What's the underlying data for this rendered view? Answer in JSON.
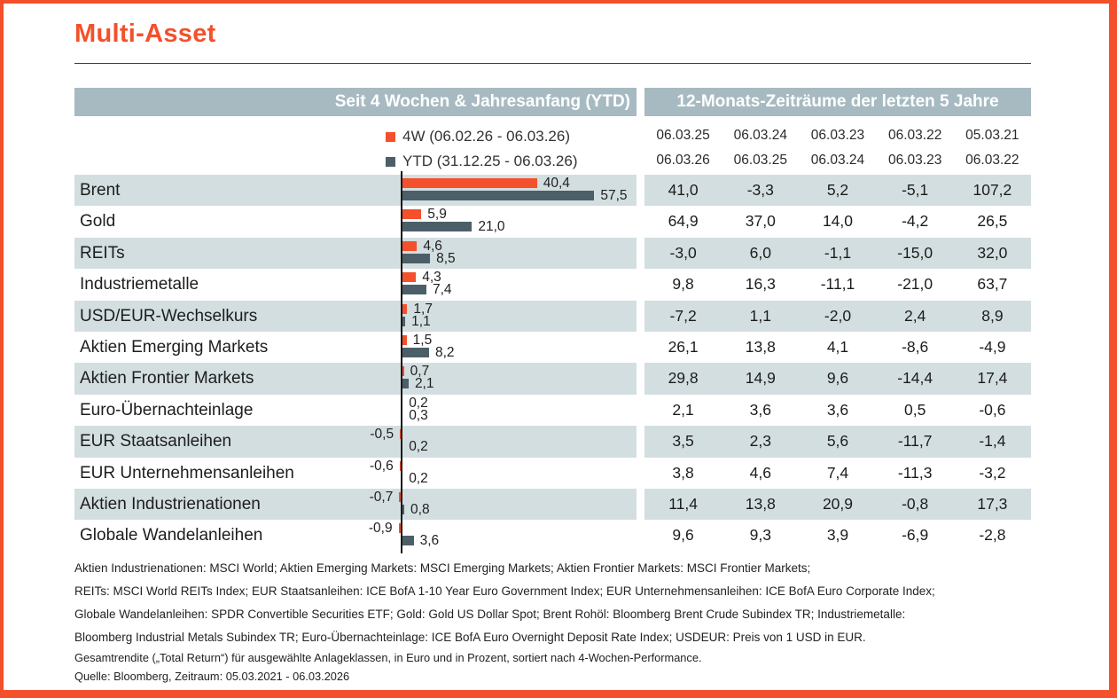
{
  "title": "Multi-Asset",
  "colors": {
    "accent_orange": "#F4502B",
    "bar_ytd_slate": "#4C5F68",
    "header_band_bg": "#A7BAC1",
    "row_stripe_bg": "#D3DEE1"
  },
  "header": {
    "left": "Seit 4 Wochen & Jahresanfang (YTD)",
    "right": "12-Monats-Zeiträume der letzten 5 Jahre"
  },
  "legend": {
    "w4": "4W (06.02.26 - 06.03.26)",
    "ytd": "YTD (31.12.25 - 06.03.26)"
  },
  "period_columns": [
    {
      "from": "06.03.25",
      "to": "06.03.26"
    },
    {
      "from": "06.03.24",
      "to": "06.03.25"
    },
    {
      "from": "06.03.23",
      "to": "06.03.24"
    },
    {
      "from": "06.03.22",
      "to": "06.03.23"
    },
    {
      "from": "05.03.21",
      "to": "06.03.22"
    }
  ],
  "chart_data": {
    "type": "bar",
    "orientation": "horizontal",
    "title": "Multi-Asset",
    "value_unit": "percent",
    "series": [
      "4W",
      "YTD"
    ],
    "x_range": [
      -5,
      70
    ],
    "sorted_by": "4-Wochen-Performance",
    "rows": [
      {
        "label": "Brent",
        "w4": 40.4,
        "ytd": 57.5,
        "w4_text": "40,4",
        "ytd_text": "57,5",
        "returns": [
          "41,0",
          "-3,3",
          "5,2",
          "-5,1",
          "107,2"
        ]
      },
      {
        "label": "Gold",
        "w4": 5.9,
        "ytd": 21.0,
        "w4_text": "5,9",
        "ytd_text": "21,0",
        "returns": [
          "64,9",
          "37,0",
          "14,0",
          "-4,2",
          "26,5"
        ]
      },
      {
        "label": "REITs",
        "w4": 4.6,
        "ytd": 8.5,
        "w4_text": "4,6",
        "ytd_text": "8,5",
        "returns": [
          "-3,0",
          "6,0",
          "-1,1",
          "-15,0",
          "32,0"
        ]
      },
      {
        "label": "Industriemetalle",
        "w4": 4.3,
        "ytd": 7.4,
        "w4_text": "4,3",
        "ytd_text": "7,4",
        "returns": [
          "9,8",
          "16,3",
          "-11,1",
          "-21,0",
          "63,7"
        ]
      },
      {
        "label": "USD/EUR-Wechselkurs",
        "w4": 1.7,
        "ytd": 1.1,
        "w4_text": "1,7",
        "ytd_text": "1,1",
        "returns": [
          "-7,2",
          "1,1",
          "-2,0",
          "2,4",
          "8,9"
        ]
      },
      {
        "label": "Aktien Emerging Markets",
        "w4": 1.5,
        "ytd": 8.2,
        "w4_text": "1,5",
        "ytd_text": "8,2",
        "returns": [
          "26,1",
          "13,8",
          "4,1",
          "-8,6",
          "-4,9"
        ]
      },
      {
        "label": "Aktien Frontier Markets",
        "w4": 0.7,
        "ytd": 2.1,
        "w4_text": "0,7",
        "ytd_text": "2,1",
        "returns": [
          "29,8",
          "14,9",
          "9,6",
          "-14,4",
          "17,4"
        ]
      },
      {
        "label": "Euro-Übernachteinlage",
        "w4": 0.2,
        "ytd": 0.3,
        "w4_text": "0,2",
        "ytd_text": "0,3",
        "returns": [
          "2,1",
          "3,6",
          "3,6",
          "0,5",
          "-0,6"
        ]
      },
      {
        "label": "EUR Staatsanleihen",
        "w4": -0.5,
        "ytd": 0.2,
        "w4_text": "-0,5",
        "ytd_text": "0,2",
        "returns": [
          "3,5",
          "2,3",
          "5,6",
          "-11,7",
          "-1,4"
        ]
      },
      {
        "label": "EUR Unternehmensanleihen",
        "w4": -0.6,
        "ytd": 0.2,
        "w4_text": "-0,6",
        "ytd_text": "0,2",
        "returns": [
          "3,8",
          "4,6",
          "7,4",
          "-11,3",
          "-3,2"
        ]
      },
      {
        "label": "Aktien Industrienationen",
        "w4": -0.7,
        "ytd": 0.8,
        "w4_text": "-0,7",
        "ytd_text": "0,8",
        "returns": [
          "11,4",
          "13,8",
          "20,9",
          "-0,8",
          "17,3"
        ]
      },
      {
        "label": "Globale Wandelanleihen",
        "w4": -0.9,
        "ytd": 3.6,
        "w4_text": "-0,9",
        "ytd_text": "3,6",
        "returns": [
          "9,6",
          "9,3",
          "3,9",
          "-6,9",
          "-2,8"
        ]
      }
    ]
  },
  "footnotes": [
    "Aktien Industrienationen: MSCI World; Aktien Emerging Markets: MSCI Emerging Markets; Aktien Frontier Markets: MSCI Frontier Markets;",
    "REITs: MSCI World REITs Index; EUR Staatsanleihen: ICE BofA 1-10 Year Euro Government Index; EUR Unternehmensanleihen: ICE BofA Euro Corporate Index;",
    "Globale Wandelanleihen: SPDR Convertible Securities ETF; Gold: Gold US Dollar Spot; Brent Rohöl: Bloomberg Brent Crude Subindex TR; Industriemetalle:",
    "Bloomberg Industrial Metals Subindex TR; Euro-Übernachteinlage: ICE BofA Euro Overnight Deposit Rate Index; USDEUR: Preis von 1 USD in EUR."
  ],
  "notes": [
    "Gesamtrendite („Total Return“) für ausgewählte Anlageklassen, in Euro und in Prozent, sortiert nach 4-Wochen-Performance.",
    "Quelle: Bloomberg, Zeitraum: 05.03.2021 - 06.03.2026"
  ]
}
